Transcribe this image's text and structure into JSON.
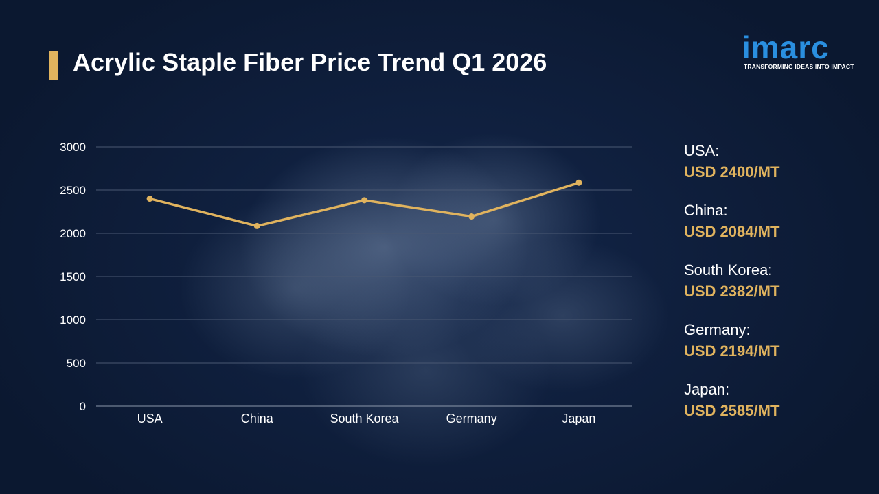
{
  "header": {
    "title": "Acrylic Staple Fiber Price Trend Q1 2026"
  },
  "logo": {
    "word": "imarc",
    "tagline": "TRANSFORMING IDEAS INTO IMPACT"
  },
  "colors": {
    "accent": "#e0b35e",
    "background": "#0c1a32",
    "brand": "#2a8fe0"
  },
  "legend": {
    "items": [
      {
        "name": "USA:",
        "value": "USD 2400/MT"
      },
      {
        "name": "China:",
        "value": "USD 2084/MT"
      },
      {
        "name": "South Korea:",
        "value": "USD 2382/MT"
      },
      {
        "name": "Germany:",
        "value": "USD 2194/MT"
      },
      {
        "name": "Japan:",
        "value": "USD 2585/MT"
      }
    ]
  },
  "chart_data": {
    "type": "line",
    "categories": [
      "USA",
      "China",
      "South Korea",
      "Germany",
      "Japan"
    ],
    "values": [
      2400,
      2084,
      2382,
      2194,
      2585
    ],
    "ylim": [
      0,
      3000
    ],
    "yticks": [
      0,
      500,
      1000,
      1500,
      2000,
      2500,
      3000
    ],
    "grid": true,
    "title": "",
    "xlabel": "",
    "ylabel": ""
  }
}
